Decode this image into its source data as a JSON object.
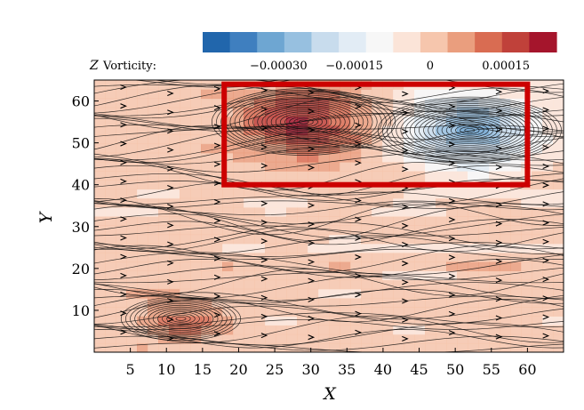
{
  "chart_data": {
    "type": "heatmap",
    "title": "",
    "colorbar": {
      "label_var": "Z",
      "label_text": "Vorticity:",
      "ticks": [
        "−0.00030",
        "−0.00015",
        "0",
        "0.00015"
      ],
      "tick_values": [
        -0.0003,
        -0.00015,
        0,
        0.00015
      ],
      "range": [
        -0.00045,
        0.00025
      ],
      "colors": [
        "#2166ac",
        "#3f7fbf",
        "#6ea6d2",
        "#97c0e0",
        "#c8dced",
        "#e2ecf5",
        "#f7f7f7",
        "#fbe4d8",
        "#f6c6ad",
        "#ea9e7e",
        "#d96c52",
        "#c0413a",
        "#a5152c"
      ]
    },
    "xlabel": "X",
    "ylabel": "Y",
    "xlim": [
      0,
      65
    ],
    "ylim": [
      0,
      65
    ],
    "x_ticks": [
      5,
      10,
      15,
      20,
      25,
      30,
      35,
      40,
      45,
      50,
      55,
      60
    ],
    "y_ticks": [
      10,
      20,
      30,
      40,
      50,
      60
    ],
    "vortices": [
      {
        "x": 29,
        "y": 55,
        "sign": "positive",
        "strength": 0.0002,
        "radius": 9
      },
      {
        "x": 52,
        "y": 53,
        "sign": "negative",
        "strength": -0.0003,
        "radius": 9
      },
      {
        "x": 12,
        "y": 8,
        "sign": "positive",
        "strength": 0.0001,
        "radius": 6
      }
    ],
    "highlight_box": {
      "x0": 18,
      "x1": 60,
      "y0": 40,
      "y1": 64,
      "color": "#cc0000"
    }
  }
}
